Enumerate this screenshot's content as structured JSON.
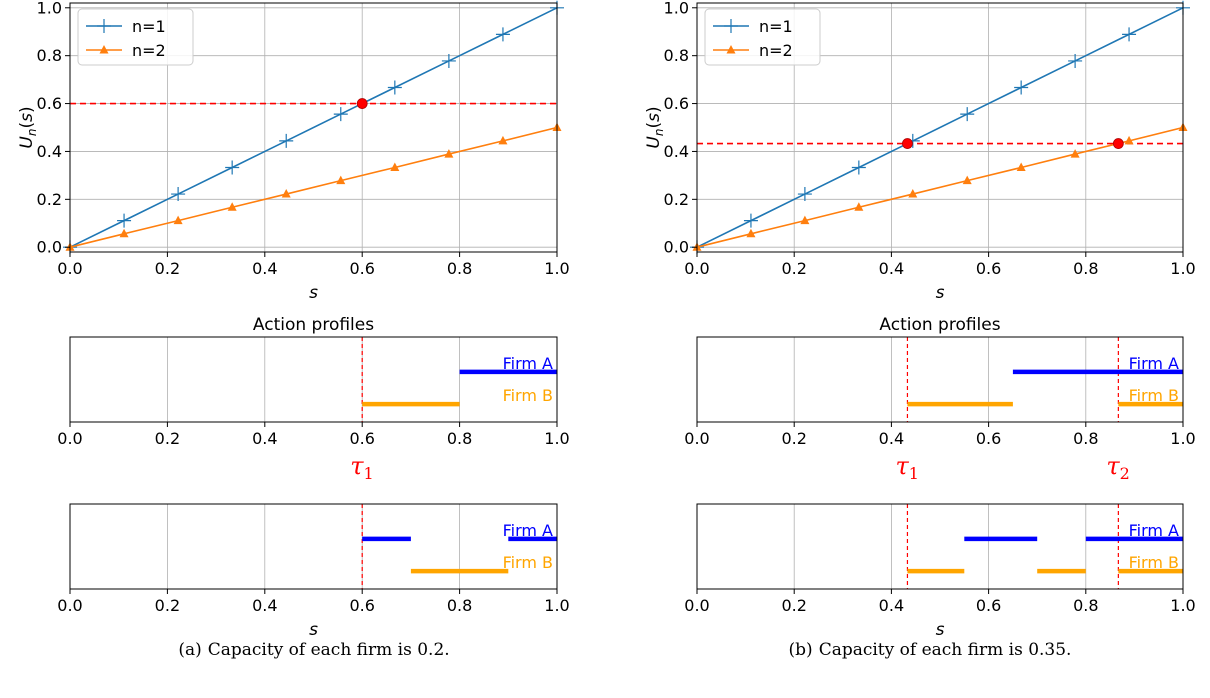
{
  "chart_data": [
    {
      "type": "line",
      "panel": "a-top",
      "xlabel": "s",
      "ylabel": "U_n(s)",
      "xlim": [
        0,
        1
      ],
      "ylim": [
        -0.02,
        1.02
      ],
      "x_ticks": [
        "0.0",
        "0.2",
        "0.4",
        "0.6",
        "0.8",
        "1.0"
      ],
      "y_ticks": [
        "0.0",
        "0.2",
        "0.4",
        "0.6",
        "0.8",
        "1.0"
      ],
      "grid": true,
      "legend": "top-left",
      "series": [
        {
          "name": "n=1",
          "color": "#1f77b4",
          "marker": "plus",
          "x": [
            0,
            0.111,
            0.222,
            0.333,
            0.444,
            0.556,
            0.667,
            0.778,
            0.889,
            1.0
          ],
          "y": [
            0,
            0.111,
            0.222,
            0.333,
            0.444,
            0.556,
            0.667,
            0.778,
            0.889,
            1.0
          ]
        },
        {
          "name": "n=2",
          "color": "#ff7f0e",
          "marker": "triangle",
          "x": [
            0,
            0.111,
            0.222,
            0.333,
            0.444,
            0.556,
            0.667,
            0.778,
            0.889,
            1.0
          ],
          "y": [
            0,
            0.056,
            0.111,
            0.167,
            0.222,
            0.278,
            0.333,
            0.389,
            0.444,
            0.5
          ]
        }
      ],
      "hline": 0.6,
      "intersections": [
        [
          0.6,
          0.6
        ]
      ]
    },
    {
      "type": "line",
      "panel": "b-top",
      "xlabel": "s",
      "ylabel": "U_n(s)",
      "xlim": [
        0,
        1
      ],
      "ylim": [
        -0.02,
        1.02
      ],
      "x_ticks": [
        "0.0",
        "0.2",
        "0.4",
        "0.6",
        "0.8",
        "1.0"
      ],
      "y_ticks": [
        "0.0",
        "0.2",
        "0.4",
        "0.6",
        "0.8",
        "1.0"
      ],
      "grid": true,
      "legend": "top-left",
      "series": [
        {
          "name": "n=1",
          "color": "#1f77b4",
          "marker": "plus",
          "x": [
            0,
            0.111,
            0.222,
            0.333,
            0.444,
            0.556,
            0.667,
            0.778,
            0.889,
            1.0
          ],
          "y": [
            0,
            0.111,
            0.222,
            0.333,
            0.444,
            0.556,
            0.667,
            0.778,
            0.889,
            1.0
          ]
        },
        {
          "name": "n=2",
          "color": "#ff7f0e",
          "marker": "triangle",
          "x": [
            0,
            0.111,
            0.222,
            0.333,
            0.444,
            0.556,
            0.667,
            0.778,
            0.889,
            1.0
          ],
          "y": [
            0,
            0.056,
            0.111,
            0.167,
            0.222,
            0.278,
            0.333,
            0.389,
            0.444,
            0.5
          ]
        }
      ],
      "hline": 0.433,
      "intersections": [
        [
          0.433,
          0.433
        ],
        [
          0.867,
          0.433
        ]
      ]
    },
    {
      "type": "intervals",
      "panel": "a-middle",
      "title": "Action profiles",
      "xlim": [
        0,
        1
      ],
      "x_ticks": [
        "0.0",
        "0.2",
        "0.4",
        "0.6",
        "0.8",
        "1.0"
      ],
      "vlines": [
        0.6
      ],
      "taus": [
        {
          "label": "τ",
          "sub": "1",
          "x": 0.6
        }
      ],
      "firms": [
        {
          "name": "Firm A",
          "color": "#0000ff",
          "segments": [
            [
              0.8,
              1.0
            ]
          ]
        },
        {
          "name": "Firm B",
          "color": "#ffa500",
          "segments": [
            [
              0.6,
              0.8
            ]
          ]
        }
      ]
    },
    {
      "type": "intervals",
      "panel": "b-middle",
      "title": "Action profiles",
      "xlim": [
        0,
        1
      ],
      "x_ticks": [
        "0.0",
        "0.2",
        "0.4",
        "0.6",
        "0.8",
        "1.0"
      ],
      "vlines": [
        0.433,
        0.867
      ],
      "taus": [
        {
          "label": "τ",
          "sub": "1",
          "x": 0.433
        },
        {
          "label": "τ",
          "sub": "2",
          "x": 0.867
        }
      ],
      "firms": [
        {
          "name": "Firm A",
          "color": "#0000ff",
          "segments": [
            [
              0.65,
              1.0
            ]
          ]
        },
        {
          "name": "Firm B",
          "color": "#ffa500",
          "segments": [
            [
              0.433,
              0.65
            ],
            [
              0.867,
              1.0
            ]
          ]
        }
      ]
    },
    {
      "type": "intervals",
      "panel": "a-bottom",
      "xlabel": "s",
      "xlim": [
        0,
        1
      ],
      "x_ticks": [
        "0.0",
        "0.2",
        "0.4",
        "0.6",
        "0.8",
        "1.0"
      ],
      "vlines": [
        0.6
      ],
      "firms": [
        {
          "name": "Firm A",
          "color": "#0000ff",
          "segments": [
            [
              0.6,
              0.7
            ],
            [
              0.9,
              1.0
            ]
          ]
        },
        {
          "name": "Firm B",
          "color": "#ffa500",
          "segments": [
            [
              0.7,
              0.9
            ]
          ]
        }
      ]
    },
    {
      "type": "intervals",
      "panel": "b-bottom",
      "xlabel": "s",
      "xlim": [
        0,
        1
      ],
      "x_ticks": [
        "0.0",
        "0.2",
        "0.4",
        "0.6",
        "0.8",
        "1.0"
      ],
      "vlines": [
        0.433,
        0.867
      ],
      "firms": [
        {
          "name": "Firm A",
          "color": "#0000ff",
          "segments": [
            [
              0.55,
              0.7
            ],
            [
              0.8,
              1.0
            ]
          ]
        },
        {
          "name": "Firm B",
          "color": "#ffa500",
          "segments": [
            [
              0.433,
              0.55
            ],
            [
              0.7,
              0.8
            ],
            [
              0.867,
              1.0
            ]
          ]
        }
      ]
    }
  ],
  "captions": {
    "a": {
      "label": "(a)",
      "text": "Capacity of each firm is 0.2."
    },
    "b": {
      "label": "(b)",
      "text": "Capacity of each firm is 0.35."
    }
  }
}
